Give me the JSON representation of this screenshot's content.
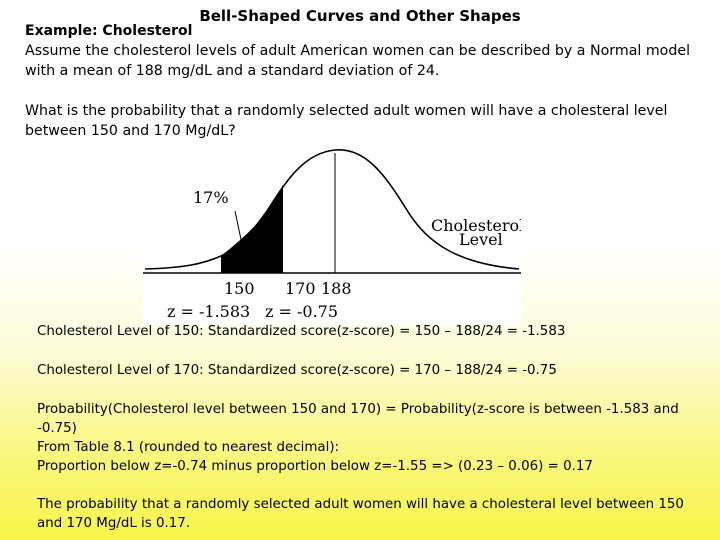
{
  "slide": {
    "title": "Bell-Shaped Curves and Other Shapes",
    "example_label": "Example: Cholesterol",
    "intro": "Assume the cholesterol levels of adult American women can be described by a Normal model with a mean of 188 mg/dL and a standard deviation of 24.",
    "question": "What is the probability that a randomly selected adult women will have a cholesteral level between 150 and 170 Mg/dL?"
  },
  "figure": {
    "percent_label": "17%",
    "axis_label_line1": "Cholesterol",
    "axis_label_line2": "Level",
    "tick_150": "150",
    "tick_170": "170",
    "tick_188": "188",
    "z_left": "z = -1.583",
    "z_right": "z = -0.75"
  },
  "calculations": {
    "line1": "Cholesterol Level of 150:  Standardized score(z-score) = 150 – 188/24 = -1.583",
    "line2": "Cholesterol Level of 170:  Standardized score(z-score) = 170 – 188/24 = -0.75",
    "line3": "Probability(Cholesterol level between 150 and 170) = Probability(z-score is between -1.583 and -0.75)",
    "line4a": "From Table 8.1 (rounded to nearest decimal):",
    "line4b": "Proportion below z=-0.74 minus proportion below z=-1.55 => (0.23 – 0.06) = 0.17",
    "conclusion": "The probability that a randomly selected adult women will have a cholesteral level between 150 and 170 Mg/dL is 0.17."
  }
}
